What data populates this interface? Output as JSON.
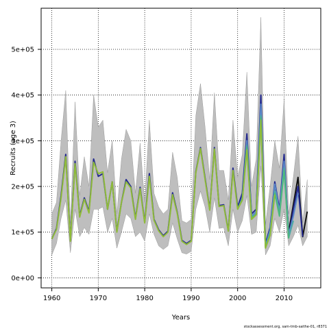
{
  "chart_data": {
    "type": "line",
    "xlabel": "Years",
    "ylabel": "Recruits (age 3)",
    "xlim": [
      1957.7,
      2017.9
    ],
    "ylim": [
      -22000,
      590000
    ],
    "x_ticks": [
      1960,
      1970,
      1980,
      1990,
      2000,
      2010
    ],
    "x_tick_labels": [
      "1960",
      "1970",
      "1980",
      "1990",
      "2000",
      "2010"
    ],
    "y_ticks": [
      0,
      100000,
      200000,
      300000,
      400000,
      500000
    ],
    "y_tick_labels": [
      "0e+00",
      "1e+05",
      "2e+05",
      "3e+05",
      "4e+05",
      "5e+05"
    ],
    "grid": true,
    "credit": "stockassessment.org, sam-tmb-saithe-01, r8371",
    "x": [
      1960,
      1961,
      1962,
      1963,
      1964,
      1965,
      1966,
      1967,
      1968,
      1969,
      1970,
      1971,
      1972,
      1973,
      1974,
      1975,
      1976,
      1977,
      1978,
      1979,
      1980,
      1981,
      1982,
      1983,
      1984,
      1985,
      1986,
      1987,
      1988,
      1989,
      1990,
      1991,
      1992,
      1993,
      1994,
      1995,
      1996,
      1997,
      1998,
      1999,
      2000,
      2001,
      2002,
      2003,
      2004,
      2005,
      2006,
      2007,
      2008,
      2009,
      2010,
      2011,
      2012,
      2013,
      2014,
      2015
    ],
    "confidence_band": {
      "color": "#bebebe",
      "lower": [
        50000,
        75000,
        130000,
        170000,
        55000,
        150000,
        90000,
        110000,
        95000,
        150000,
        150000,
        155000,
        100000,
        130000,
        65000,
        100000,
        140000,
        130000,
        90000,
        100000,
        80000,
        140000,
        95000,
        70000,
        62000,
        70000,
        120000,
        85000,
        55000,
        52000,
        58000,
        150000,
        190000,
        155000,
        100000,
        175000,
        108000,
        110000,
        70000,
        150000,
        100000,
        125000,
        180000,
        95000,
        100000,
        245000,
        50000,
        70000,
        130000,
        100000,
        150000,
        70000,
        90000,
        115000,
        70000,
        90000
      ],
      "upper": [
        140000,
        165000,
        300000,
        410000,
        120000,
        385000,
        180000,
        265000,
        200000,
        400000,
        330000,
        345000,
        230000,
        300000,
        140000,
        260000,
        325000,
        300000,
        185000,
        295000,
        165000,
        345000,
        185000,
        155000,
        140000,
        150000,
        275000,
        220000,
        125000,
        120000,
        128000,
        355000,
        425000,
        330000,
        215000,
        405000,
        235000,
        235000,
        170000,
        345000,
        220000,
        270000,
        450000,
        200000,
        260000,
        570000,
        115000,
        200000,
        300000,
        240000,
        390000,
        140000,
        220000,
        310000,
        120000,
        215000
      ]
    },
    "series": [
      {
        "color": "#111111",
        "values": [
          null,
          null,
          null,
          null,
          null,
          null,
          null,
          null,
          null,
          null,
          null,
          null,
          null,
          null,
          null,
          null,
          null,
          null,
          null,
          null,
          null,
          null,
          null,
          null,
          null,
          null,
          null,
          null,
          null,
          null,
          null,
          null,
          null,
          null,
          null,
          null,
          null,
          null,
          null,
          null,
          null,
          null,
          null,
          130000,
          140000,
          370000,
          70000,
          100000,
          200000,
          140000,
          245000,
          100000,
          160000,
          220000,
          90000,
          145000
        ]
      },
      {
        "color": "#23298e",
        "values": [
          85000,
          108000,
          180000,
          270000,
          82000,
          255000,
          135000,
          175000,
          145000,
          260000,
          222000,
          228000,
          150000,
          210000,
          102000,
          165000,
          215000,
          200000,
          130000,
          198000,
          122000,
          228000,
          128000,
          105000,
          92000,
          102000,
          186000,
          143000,
          82000,
          75000,
          82000,
          232000,
          285000,
          218000,
          150000,
          285000,
          158000,
          160000,
          103000,
          240000,
          155000,
          185000,
          315000,
          140000,
          150000,
          400000,
          75000,
          110000,
          210000,
          150000,
          270000,
          90000,
          150000,
          200000,
          90000,
          null
        ]
      },
      {
        "color": "#5b88c8",
        "values": [
          null,
          null,
          null,
          null,
          null,
          null,
          null,
          null,
          null,
          null,
          null,
          null,
          null,
          null,
          null,
          null,
          null,
          null,
          null,
          null,
          null,
          null,
          null,
          null,
          null,
          null,
          null,
          null,
          null,
          null,
          null,
          null,
          null,
          null,
          null,
          null,
          null,
          null,
          null,
          null,
          150000,
          175000,
          300000,
          135000,
          145000,
          380000,
          70000,
          105000,
          205000,
          145000,
          255000,
          95000,
          135000,
          185000,
          null,
          null
        ]
      },
      {
        "color": "#4fa9a5",
        "values": [
          null,
          null,
          null,
          null,
          null,
          null,
          null,
          null,
          null,
          null,
          null,
          null,
          null,
          null,
          null,
          null,
          null,
          null,
          null,
          null,
          null,
          null,
          null,
          null,
          null,
          null,
          null,
          null,
          null,
          null,
          null,
          null,
          null,
          null,
          null,
          null,
          null,
          null,
          null,
          null,
          150000,
          172000,
          290000,
          132000,
          140000,
          355000,
          68000,
          100000,
          190000,
          140000,
          240000,
          88000,
          125000,
          null,
          null,
          null
        ]
      },
      {
        "color": "#4cb87c",
        "values": [
          null,
          null,
          null,
          null,
          null,
          null,
          null,
          null,
          null,
          null,
          null,
          null,
          null,
          null,
          null,
          null,
          null,
          null,
          null,
          null,
          null,
          null,
          null,
          null,
          null,
          null,
          null,
          null,
          null,
          null,
          null,
          null,
          null,
          null,
          null,
          null,
          null,
          null,
          null,
          null,
          151000,
          172000,
          285000,
          130000,
          140000,
          350000,
          66000,
          95000,
          185000,
          135000,
          235000,
          86000,
          null,
          null,
          null,
          null
        ]
      },
      {
        "color": "#8fbb3a",
        "values": [
          85000,
          106000,
          175000,
          265000,
          80000,
          250000,
          133000,
          172000,
          142000,
          253000,
          228000,
          232000,
          150000,
          210000,
          100000,
          165000,
          210000,
          197000,
          128000,
          195000,
          120000,
          222000,
          126000,
          103000,
          90000,
          100000,
          182000,
          141000,
          80000,
          73000,
          80000,
          230000,
          283000,
          215000,
          148000,
          282000,
          156000,
          158000,
          102000,
          235000,
          150000,
          170000,
          280000,
          128000,
          138000,
          345000,
          65000,
          93000,
          182000,
          null,
          null,
          null,
          null,
          null,
          null,
          null
        ]
      }
    ]
  }
}
